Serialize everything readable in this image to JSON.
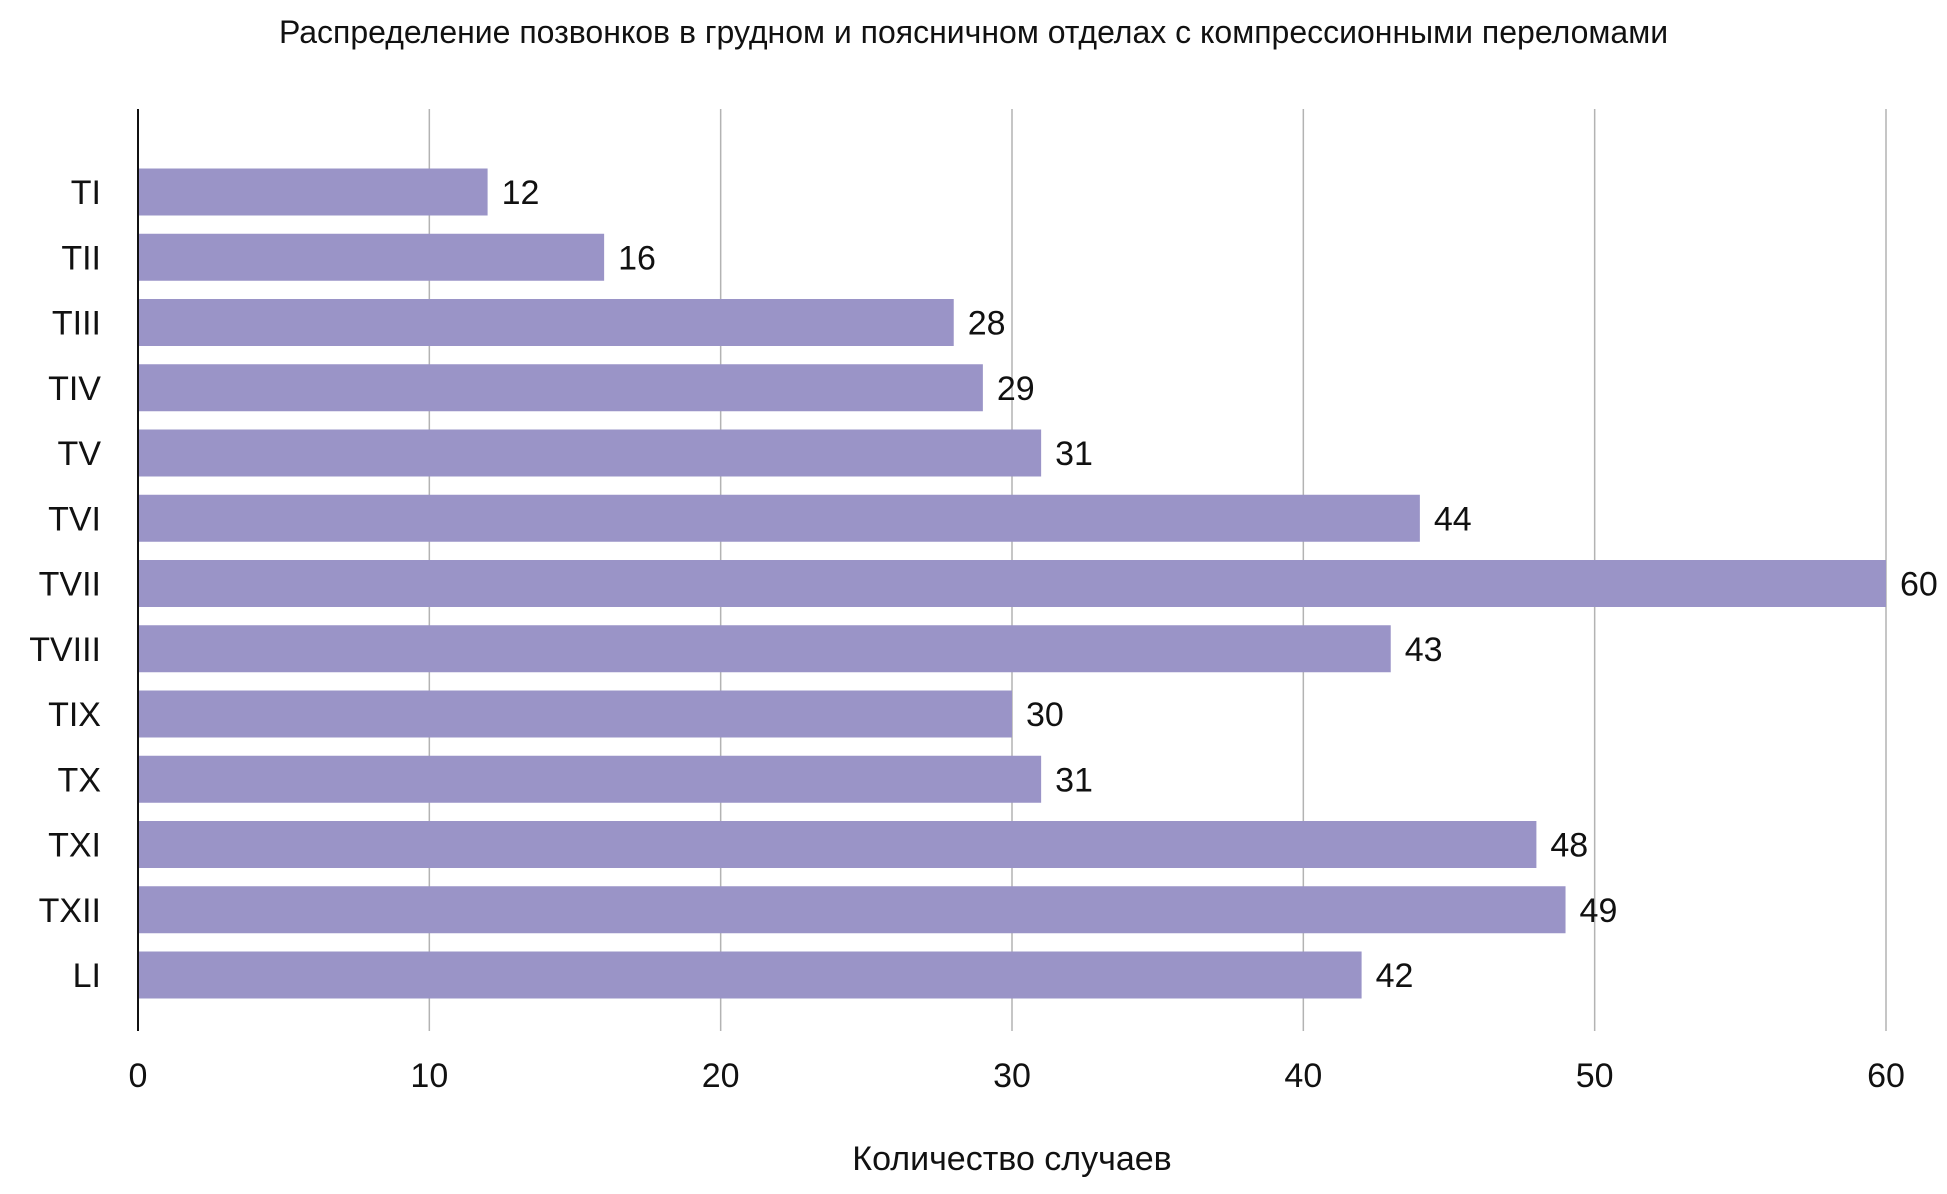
{
  "chart_data": {
    "type": "bar",
    "orientation": "horizontal",
    "title": "Распределение позвонков в грудном и поясничном отделах с компрессионными переломами",
    "xlabel": "Количество случаев",
    "ylabel": "",
    "categories": [
      "TI",
      "TII",
      "TIII",
      "TIV",
      "TV",
      "TVI",
      "TVII",
      "TVIII",
      "TIX",
      "TX",
      "TXI",
      "TXII",
      "LI"
    ],
    "values": [
      12,
      16,
      28,
      29,
      31,
      44,
      60,
      43,
      30,
      31,
      48,
      49,
      42
    ],
    "xlim": [
      0,
      60
    ],
    "xticks": [
      0,
      10,
      20,
      30,
      40,
      50,
      60
    ],
    "grid": true,
    "data_labels": true,
    "bar_color": "#9a94c7"
  }
}
